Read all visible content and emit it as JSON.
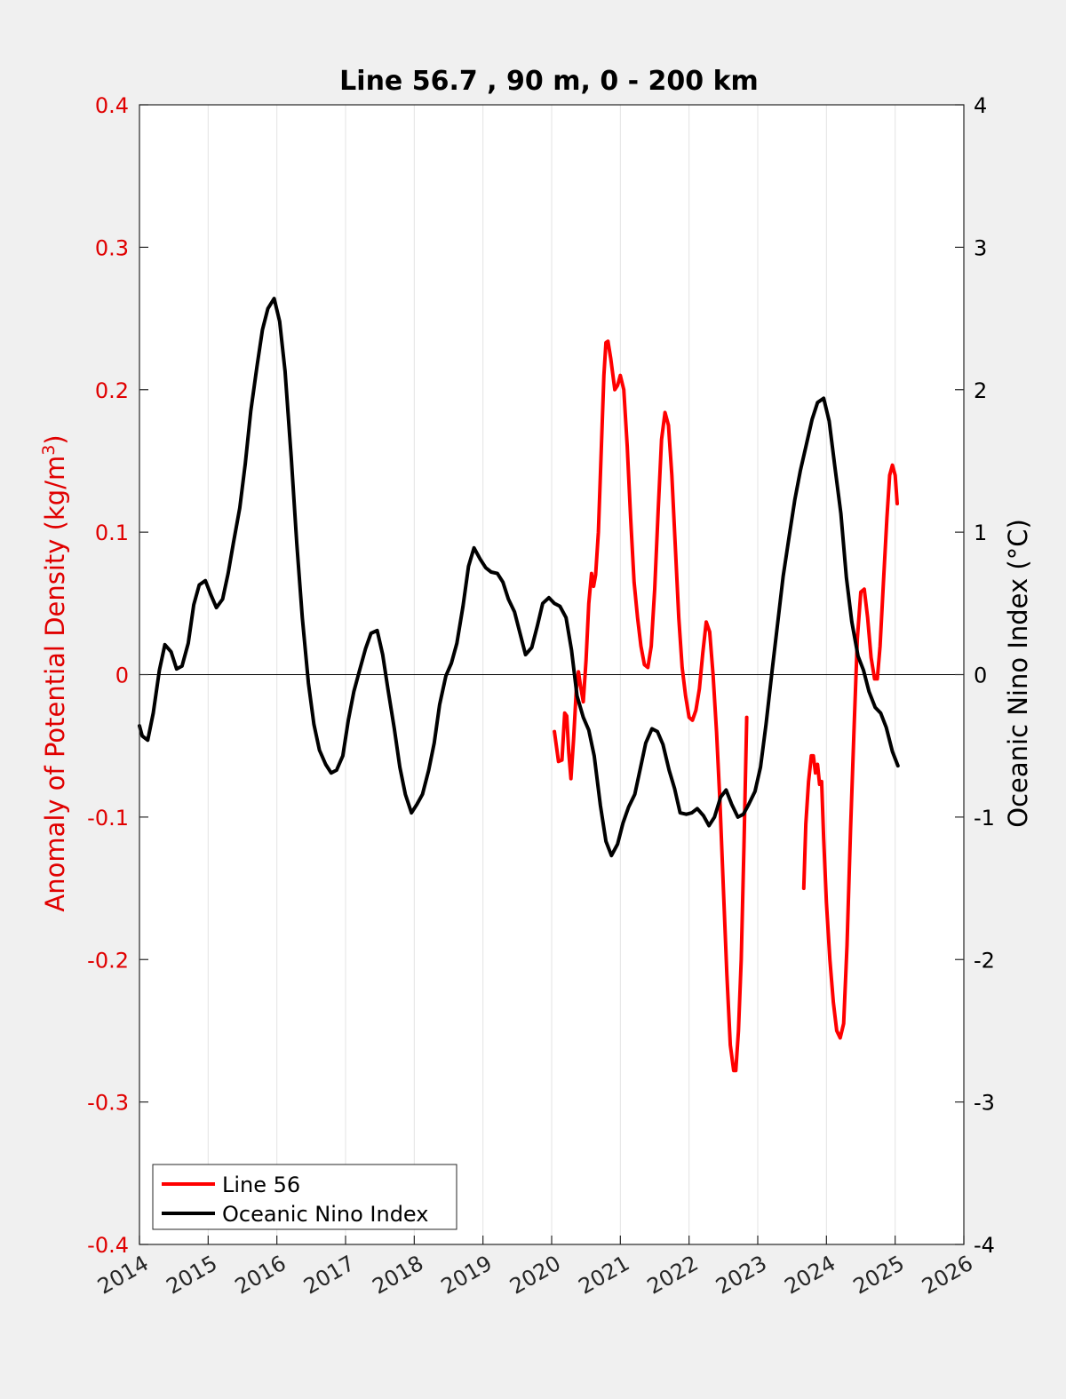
{
  "chart_data": {
    "type": "line",
    "title": "Line 56.7 , 90 m, 0 - 200 km",
    "ylabel_left": "Anomaly of Potential Density (kg/m",
    "ylabel_left_sup": "3",
    "ylabel_left_close": ")",
    "ylabel_right": "Oceanic Nino Index (°C)",
    "xlim": [
      2014,
      2026
    ],
    "ylim_left": [
      -0.4,
      0.4
    ],
    "ylim_right": [
      -4,
      4
    ],
    "x_ticks": [
      "2014",
      "2015",
      "2016",
      "2017",
      "2018",
      "2019",
      "2020",
      "2021",
      "2022",
      "2023",
      "2024",
      "2025",
      "2026"
    ],
    "y_ticks_left": [
      "-0.4",
      "-0.3",
      "-0.2",
      "-0.1",
      "0",
      "0.1",
      "0.2",
      "0.3",
      "0.4"
    ],
    "y_ticks_right": [
      "-4",
      "-3",
      "-2",
      "-1",
      "0",
      "1",
      "2",
      "3",
      "4"
    ],
    "grid": "vertical",
    "legend_position": "bottom-left",
    "series": [
      {
        "name": "Line 56",
        "axis": "left",
        "color": "#ff0000",
        "segments": [
          [
            [
              2020.04,
              -0.04
            ],
            [
              2020.1,
              -0.061
            ],
            [
              2020.15,
              -0.06
            ],
            [
              2020.19,
              -0.027
            ],
            [
              2020.22,
              -0.029
            ],
            [
              2020.25,
              -0.055
            ],
            [
              2020.28,
              -0.073
            ],
            [
              2020.32,
              -0.045
            ],
            [
              2020.36,
              -0.01
            ],
            [
              2020.39,
              0.002
            ],
            [
              2020.42,
              -0.008
            ],
            [
              2020.46,
              -0.019
            ],
            [
              2020.5,
              0.01
            ],
            [
              2020.54,
              0.05
            ],
            [
              2020.58,
              0.071
            ],
            [
              2020.61,
              0.062
            ],
            [
              2020.64,
              0.07
            ],
            [
              2020.68,
              0.1
            ],
            [
              2020.72,
              0.155
            ],
            [
              2020.76,
              0.21
            ],
            [
              2020.79,
              0.233
            ],
            [
              2020.82,
              0.234
            ],
            [
              2020.86,
              0.222
            ],
            [
              2020.92,
              0.2
            ],
            [
              2020.96,
              0.203
            ],
            [
              2021.0,
              0.21
            ],
            [
              2021.05,
              0.2
            ],
            [
              2021.1,
              0.16
            ],
            [
              2021.15,
              0.11
            ],
            [
              2021.2,
              0.065
            ],
            [
              2021.25,
              0.04
            ],
            [
              2021.3,
              0.02
            ],
            [
              2021.35,
              0.007
            ],
            [
              2021.4,
              0.005
            ],
            [
              2021.45,
              0.02
            ],
            [
              2021.5,
              0.06
            ],
            [
              2021.55,
              0.115
            ],
            [
              2021.6,
              0.165
            ],
            [
              2021.65,
              0.184
            ],
            [
              2021.7,
              0.175
            ],
            [
              2021.75,
              0.14
            ],
            [
              2021.8,
              0.09
            ],
            [
              2021.85,
              0.04
            ],
            [
              2021.9,
              0.005
            ],
            [
              2021.95,
              -0.015
            ],
            [
              2022.0,
              -0.03
            ],
            [
              2022.05,
              -0.032
            ],
            [
              2022.1,
              -0.025
            ],
            [
              2022.15,
              -0.01
            ],
            [
              2022.2,
              0.015
            ],
            [
              2022.25,
              0.037
            ],
            [
              2022.3,
              0.03
            ],
            [
              2022.35,
              0.0
            ],
            [
              2022.4,
              -0.04
            ],
            [
              2022.45,
              -0.09
            ],
            [
              2022.5,
              -0.15
            ],
            [
              2022.55,
              -0.21
            ],
            [
              2022.6,
              -0.26
            ],
            [
              2022.65,
              -0.278
            ],
            [
              2022.68,
              -0.278
            ],
            [
              2022.72,
              -0.25
            ],
            [
              2022.76,
              -0.2
            ],
            [
              2022.8,
              -0.12
            ],
            [
              2022.84,
              -0.03
            ]
          ],
          [
            [
              2023.67,
              -0.15
            ],
            [
              2023.7,
              -0.105
            ],
            [
              2023.74,
              -0.075
            ],
            [
              2023.78,
              -0.057
            ],
            [
              2023.81,
              -0.057
            ],
            [
              2023.84,
              -0.069
            ],
            [
              2023.87,
              -0.063
            ],
            [
              2023.9,
              -0.077
            ],
            [
              2023.93,
              -0.075
            ],
            [
              2023.96,
              -0.115
            ],
            [
              2024.0,
              -0.16
            ],
            [
              2024.05,
              -0.2
            ],
            [
              2024.1,
              -0.23
            ],
            [
              2024.15,
              -0.25
            ],
            [
              2024.2,
              -0.255
            ],
            [
              2024.25,
              -0.245
            ],
            [
              2024.3,
              -0.19
            ],
            [
              2024.35,
              -0.11
            ],
            [
              2024.4,
              -0.04
            ],
            [
              2024.45,
              0.025
            ],
            [
              2024.5,
              0.058
            ],
            [
              2024.55,
              0.06
            ],
            [
              2024.6,
              0.04
            ],
            [
              2024.65,
              0.012
            ],
            [
              2024.7,
              -0.003
            ],
            [
              2024.74,
              -0.003
            ],
            [
              2024.78,
              0.02
            ],
            [
              2024.83,
              0.065
            ],
            [
              2024.88,
              0.11
            ],
            [
              2024.92,
              0.14
            ],
            [
              2024.96,
              0.147
            ],
            [
              2025.0,
              0.14
            ],
            [
              2025.03,
              0.12
            ]
          ]
        ]
      },
      {
        "name": "Oceanic Nino Index",
        "axis": "right",
        "color": "#000000",
        "segments": [
          [
            [
              2014.0,
              -0.36
            ],
            [
              2014.04,
              -0.43
            ],
            [
              2014.12,
              -0.46
            ],
            [
              2014.2,
              -0.27
            ],
            [
              2014.29,
              0.03
            ],
            [
              2014.37,
              0.21
            ],
            [
              2014.46,
              0.16
            ],
            [
              2014.54,
              0.04
            ],
            [
              2014.62,
              0.06
            ],
            [
              2014.71,
              0.22
            ],
            [
              2014.79,
              0.49
            ],
            [
              2014.87,
              0.63
            ],
            [
              2014.96,
              0.66
            ],
            [
              2015.04,
              0.56
            ],
            [
              2015.12,
              0.47
            ],
            [
              2015.21,
              0.53
            ],
            [
              2015.29,
              0.71
            ],
            [
              2015.37,
              0.93
            ],
            [
              2015.46,
              1.17
            ],
            [
              2015.54,
              1.48
            ],
            [
              2015.62,
              1.85
            ],
            [
              2015.71,
              2.16
            ],
            [
              2015.79,
              2.42
            ],
            [
              2015.87,
              2.57
            ],
            [
              2015.96,
              2.64
            ],
            [
              2016.04,
              2.48
            ],
            [
              2016.12,
              2.13
            ],
            [
              2016.21,
              1.52
            ],
            [
              2016.29,
              0.92
            ],
            [
              2016.37,
              0.4
            ],
            [
              2016.46,
              -0.06
            ],
            [
              2016.54,
              -0.35
            ],
            [
              2016.62,
              -0.53
            ],
            [
              2016.71,
              -0.63
            ],
            [
              2016.79,
              -0.69
            ],
            [
              2016.87,
              -0.67
            ],
            [
              2016.96,
              -0.57
            ],
            [
              2017.04,
              -0.32
            ],
            [
              2017.12,
              -0.12
            ],
            [
              2017.21,
              0.04
            ],
            [
              2017.29,
              0.18
            ],
            [
              2017.37,
              0.29
            ],
            [
              2017.46,
              0.31
            ],
            [
              2017.54,
              0.14
            ],
            [
              2017.62,
              -0.11
            ],
            [
              2017.71,
              -0.38
            ],
            [
              2017.79,
              -0.65
            ],
            [
              2017.87,
              -0.84
            ],
            [
              2017.96,
              -0.97
            ],
            [
              2018.04,
              -0.91
            ],
            [
              2018.12,
              -0.84
            ],
            [
              2018.21,
              -0.67
            ],
            [
              2018.29,
              -0.48
            ],
            [
              2018.37,
              -0.21
            ],
            [
              2018.46,
              -0.01
            ],
            [
              2018.54,
              0.08
            ],
            [
              2018.62,
              0.22
            ],
            [
              2018.71,
              0.48
            ],
            [
              2018.79,
              0.76
            ],
            [
              2018.87,
              0.89
            ],
            [
              2018.96,
              0.81
            ],
            [
              2019.04,
              0.75
            ],
            [
              2019.12,
              0.72
            ],
            [
              2019.21,
              0.71
            ],
            [
              2019.29,
              0.65
            ],
            [
              2019.37,
              0.53
            ],
            [
              2019.46,
              0.44
            ],
            [
              2019.54,
              0.29
            ],
            [
              2019.62,
              0.14
            ],
            [
              2019.71,
              0.19
            ],
            [
              2019.79,
              0.34
            ],
            [
              2019.87,
              0.5
            ],
            [
              2019.96,
              0.54
            ],
            [
              2020.04,
              0.5
            ],
            [
              2020.12,
              0.48
            ],
            [
              2020.21,
              0.4
            ],
            [
              2020.29,
              0.17
            ],
            [
              2020.37,
              -0.15
            ],
            [
              2020.46,
              -0.3
            ],
            [
              2020.54,
              -0.39
            ],
            [
              2020.62,
              -0.57
            ],
            [
              2020.71,
              -0.92
            ],
            [
              2020.79,
              -1.17
            ],
            [
              2020.87,
              -1.27
            ],
            [
              2020.96,
              -1.19
            ],
            [
              2021.04,
              -1.04
            ],
            [
              2021.12,
              -0.93
            ],
            [
              2021.21,
              -0.84
            ],
            [
              2021.29,
              -0.66
            ],
            [
              2021.37,
              -0.48
            ],
            [
              2021.46,
              -0.38
            ],
            [
              2021.54,
              -0.4
            ],
            [
              2021.62,
              -0.49
            ],
            [
              2021.71,
              -0.67
            ],
            [
              2021.79,
              -0.8
            ],
            [
              2021.87,
              -0.97
            ],
            [
              2021.96,
              -0.98
            ],
            [
              2022.04,
              -0.97
            ],
            [
              2022.12,
              -0.94
            ],
            [
              2022.21,
              -0.99
            ],
            [
              2022.29,
              -1.06
            ],
            [
              2022.37,
              -1.0
            ],
            [
              2022.46,
              -0.86
            ],
            [
              2022.54,
              -0.81
            ],
            [
              2022.62,
              -0.91
            ],
            [
              2022.71,
              -1.0
            ],
            [
              2022.79,
              -0.98
            ],
            [
              2022.87,
              -0.91
            ],
            [
              2022.96,
              -0.82
            ],
            [
              2023.04,
              -0.65
            ],
            [
              2023.12,
              -0.35
            ],
            [
              2023.21,
              0.03
            ],
            [
              2023.29,
              0.36
            ],
            [
              2023.37,
              0.69
            ],
            [
              2023.46,
              0.98
            ],
            [
              2023.54,
              1.23
            ],
            [
              2023.62,
              1.43
            ],
            [
              2023.71,
              1.62
            ],
            [
              2023.79,
              1.79
            ],
            [
              2023.87,
              1.91
            ],
            [
              2023.96,
              1.94
            ],
            [
              2024.04,
              1.78
            ],
            [
              2024.12,
              1.47
            ],
            [
              2024.21,
              1.13
            ],
            [
              2024.29,
              0.68
            ],
            [
              2024.37,
              0.37
            ],
            [
              2024.46,
              0.13
            ],
            [
              2024.54,
              0.03
            ],
            [
              2024.62,
              -0.12
            ],
            [
              2024.71,
              -0.23
            ],
            [
              2024.79,
              -0.27
            ],
            [
              2024.87,
              -0.37
            ],
            [
              2024.96,
              -0.54
            ],
            [
              2025.04,
              -0.64
            ]
          ]
        ]
      }
    ]
  }
}
